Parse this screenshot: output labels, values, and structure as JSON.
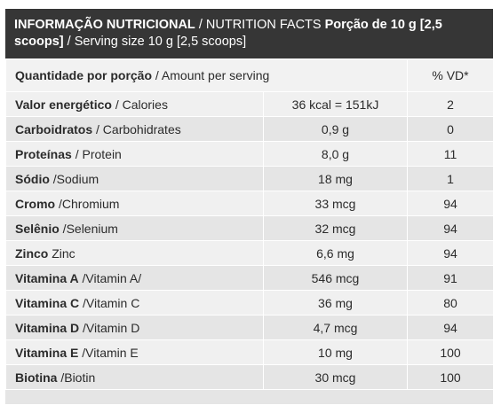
{
  "header": {
    "title_pt": "INFORMAÇÃO NUTRICIONAL",
    "sep1": " / ",
    "title_en": "NUTRITION FACTS",
    "portion_pt": " Porção de 10 g [2,5 scoops]",
    "sep2": " / ",
    "portion_en": "Serving size 10 g [2,5 scoops]"
  },
  "columns": {
    "amount_pt": "Quantidade por porção",
    "amount_en": " / Amount per serving",
    "vd": "% VD*"
  },
  "rows": [
    {
      "pt": "Valor energético",
      "en": " / Calories",
      "amount": "36 kcal = 151kJ",
      "vd": "2"
    },
    {
      "pt": "Carboidratos",
      "en": " / Carbohidrates",
      "amount": "0,9 g",
      "vd": "0"
    },
    {
      "pt": "Proteínas",
      "en": " / Protein",
      "amount": "8,0 g",
      "vd": "11"
    },
    {
      "pt": "Sódio",
      "en": " /Sodium",
      "amount": "18 mg",
      "vd": "1"
    },
    {
      "pt": "Cromo",
      "en": " /Chromium",
      "amount": "33 mcg",
      "vd": "94"
    },
    {
      "pt": "Selênio",
      "en": " /Selenium",
      "amount": "32 mcg",
      "vd": "94"
    },
    {
      "pt": "Zinco",
      "en": " Zinc",
      "amount": "6,6 mg",
      "vd": "94"
    },
    {
      "pt": "Vitamina A",
      "en": " /Vitamin A/",
      "amount": "546 mcg",
      "vd": "91"
    },
    {
      "pt": "Vitamina C",
      "en": " /Vitamin C",
      "amount": "36 mg",
      "vd": "80"
    },
    {
      "pt": "Vitamina D",
      "en": " /Vitamin D",
      "amount": "4,7 mcg",
      "vd": "94"
    },
    {
      "pt": "Vitamina E",
      "en": " /Vitamin E",
      "amount": "10 mg",
      "vd": "100"
    },
    {
      "pt": "Biotina",
      "en": " /Biotin",
      "amount": "30 mcg",
      "vd": "100"
    }
  ]
}
